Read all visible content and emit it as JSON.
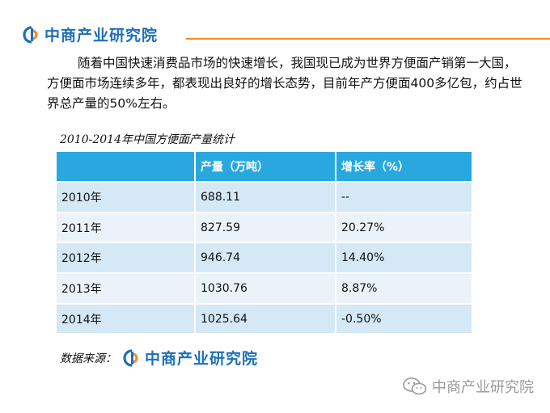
{
  "header": {
    "brand": "中商产业研究院",
    "accent_color": "#f28c28",
    "brand_color": "#1f6fb8"
  },
  "intro": {
    "text": "随着中国快速消费品市场的快速增长，我国现已成为世界方便面产销第一大国，方便面市场连续多年，都表现出良好的增长态势，目前年产方便面400多亿包，约占世界总产量的50%左右。"
  },
  "table": {
    "caption": "2010-2014年中国方便面产量统计",
    "header_color": "#29a8e0",
    "columns": [
      "",
      "产量（万吨）",
      "增长率（%）"
    ],
    "rows": [
      [
        "2010年",
        "688.11",
        "--"
      ],
      [
        "2011年",
        "827.59",
        "20.27%"
      ],
      [
        "2012年",
        "946.74",
        "14.40%"
      ],
      [
        "2013年",
        "1030.76",
        "8.87%"
      ],
      [
        "2014年",
        "1025.64",
        "-0.50%"
      ]
    ]
  },
  "source": {
    "label": "数据来源：",
    "brand": "中商产业研究院"
  },
  "watermark": {
    "icon": "wechat-icon",
    "text": "中商产业研究院"
  }
}
